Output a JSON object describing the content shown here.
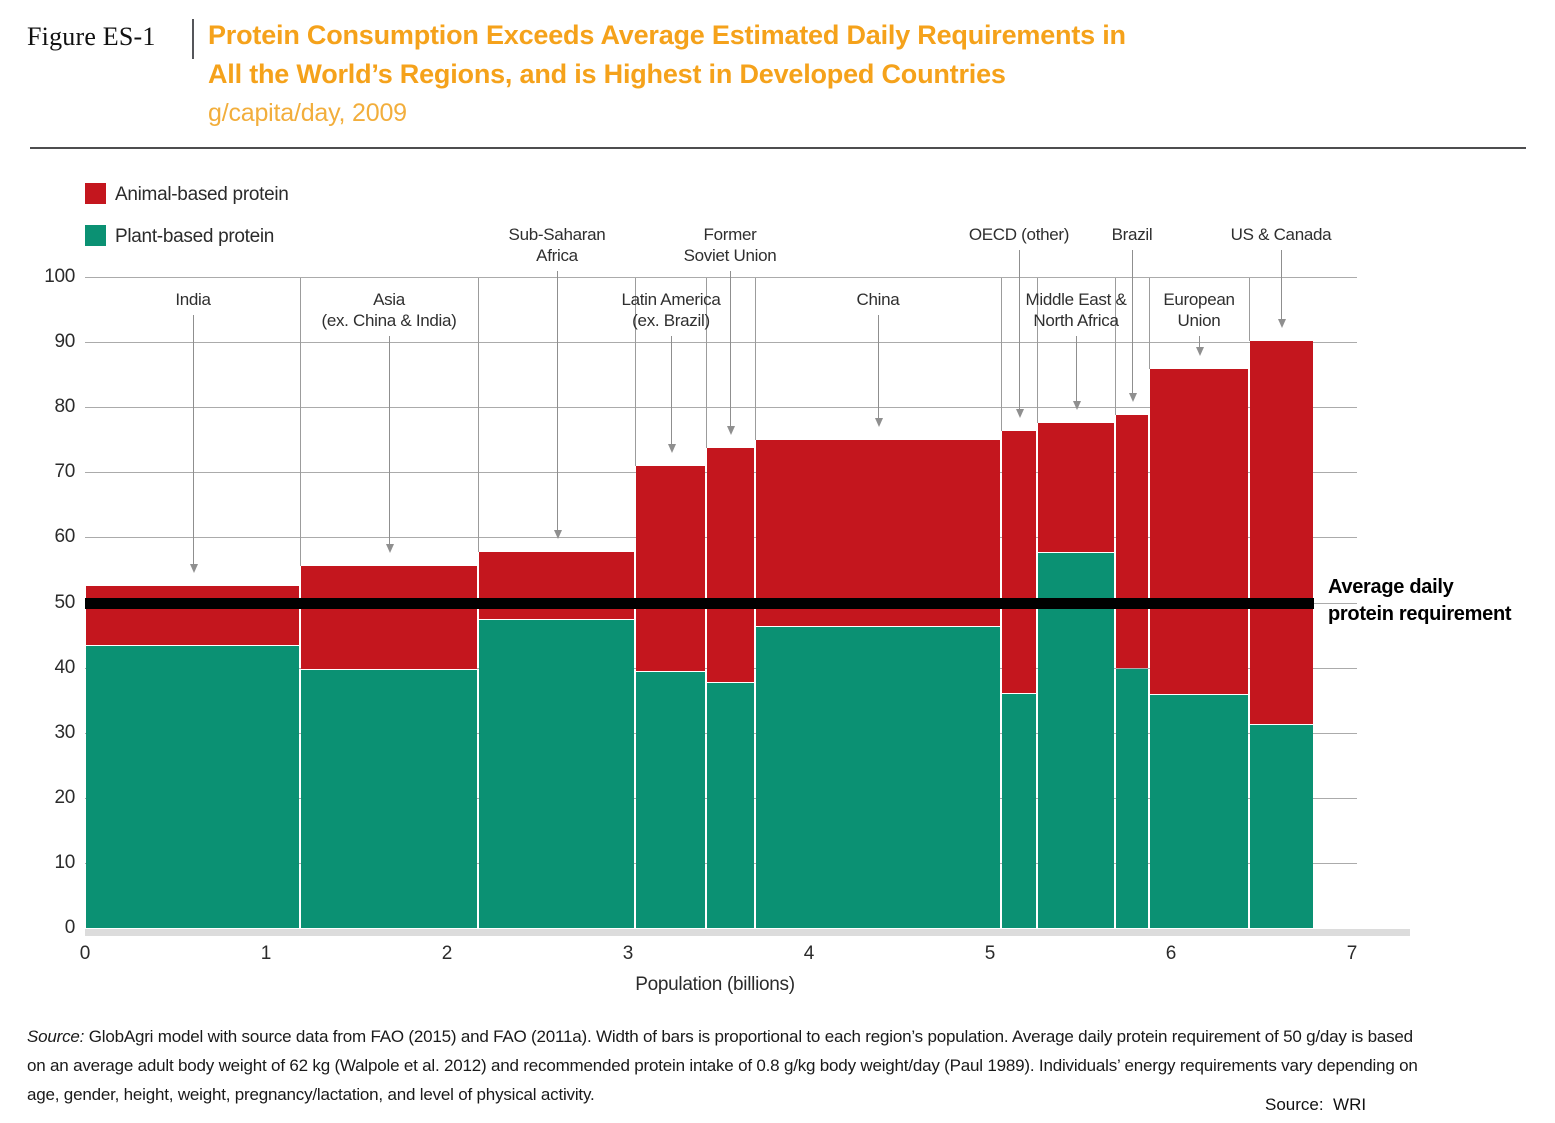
{
  "header": {
    "figure_label": "Figure ES-1",
    "title_line1": "Protein Consumption Exceeds Average Estimated Daily Requirements in",
    "title_line2": "All the World’s Regions, and is Highest in Developed Countries",
    "subtitle": "g/capita/day, 2009",
    "title_color": "#F5A21B"
  },
  "legend": {
    "items": [
      {
        "label": "Animal-based protein",
        "color": "#C4161E"
      },
      {
        "label": "Plant-based protein",
        "color": "#0B9173"
      }
    ]
  },
  "annotation": {
    "line1": "Average daily",
    "line2": "protein requirement"
  },
  "footer": {
    "source_label": "Source:",
    "line1": "GlobAgri model with source data from FAO (2015) and FAO (2011a). Width of bars is proportional to each region’s population. Average daily protein requirement of 50 g/day is based",
    "line2": "on an average adult body weight of 62 kg (Walpole et al. 2012) and recommended protein intake of 0.8 g/kg body weight/day (Paul 1989). Individuals’ energy requirements vary depending on",
    "line3": "age, gender, height, weight, pregnancy/lactation, and level of physical activity.",
    "credit": "Source:  WRI"
  },
  "chart_data": {
    "type": "bar",
    "subtype": "variable-width stacked bars (marimekko); bar width proportional to population",
    "title": "Protein Consumption Exceeds Average Estimated Daily Requirements in All the World’s Regions, and is Highest in Developed Countries",
    "unit": "g/capita/day",
    "year": "2009",
    "xlabel": "Population (billions)",
    "ylabel": "",
    "x_ticks": [
      0,
      1,
      2,
      3,
      4,
      5,
      6,
      7
    ],
    "xlim": [
      0,
      7
    ],
    "ylim": [
      0,
      100
    ],
    "y_tick_step": 10,
    "grid": true,
    "legend_position": "top-left",
    "reference_line": {
      "value": 50,
      "label": "Average daily protein requirement"
    },
    "series": [
      {
        "name": "Animal-based protein",
        "color": "#C4161E"
      },
      {
        "name": "Plant-based protein",
        "color": "#0B9173"
      }
    ],
    "regions": [
      {
        "name": "India",
        "label_lines": [
          "India"
        ],
        "label_row": "lower",
        "pop_start": 0,
        "pop_end": 1.19,
        "plant": 43.3,
        "animal": 9.2,
        "total": 52.5
      },
      {
        "name": "Asia (ex. China & India)",
        "label_lines": [
          "Asia",
          "(ex. China & India)"
        ],
        "label_row": "lower",
        "pop_start": 1.19,
        "pop_end": 2.17,
        "plant": 39.6,
        "animal": 16.0,
        "total": 55.6
      },
      {
        "name": "Sub-Saharan Africa",
        "label_lines": [
          "Sub-Saharan",
          "Africa"
        ],
        "label_row": "upper",
        "pop_start": 2.17,
        "pop_end": 3.04,
        "plant": 47.3,
        "animal": 10.4,
        "total": 57.7
      },
      {
        "name": "Latin America (ex. Brazil)",
        "label_lines": [
          "Latin America",
          "(ex. Brazil)"
        ],
        "label_row": "lower",
        "pop_start": 3.04,
        "pop_end": 3.43,
        "plant": 39.4,
        "animal": 31.5,
        "total": 70.9
      },
      {
        "name": "Former Soviet Union",
        "label_lines": [
          "Former",
          "Soviet Union"
        ],
        "label_row": "upper",
        "pop_start": 3.43,
        "pop_end": 3.7,
        "plant": 37.6,
        "animal": 36.2,
        "total": 73.8
      },
      {
        "name": "China",
        "label_lines": [
          "China"
        ],
        "label_row": "lower",
        "pop_start": 3.7,
        "pop_end": 5.06,
        "plant": 46.3,
        "animal": 28.7,
        "total": 75.0
      },
      {
        "name": "OECD (other)",
        "label_lines": [
          "OECD (other)"
        ],
        "label_row": "upper",
        "pop_start": 5.06,
        "pop_end": 5.26,
        "plant": 35.9,
        "animal": 40.4,
        "total": 76.3
      },
      {
        "name": "Middle East & North Africa",
        "label_lines": [
          "Middle East &",
          "North Africa"
        ],
        "label_row": "lower",
        "pop_start": 5.26,
        "pop_end": 5.69,
        "plant": 57.6,
        "animal": 20.0,
        "total": 77.6
      },
      {
        "name": "Brazil",
        "label_lines": [
          "Brazil"
        ],
        "label_row": "upper",
        "pop_start": 5.69,
        "pop_end": 5.88,
        "plant": 39.8,
        "animal": 39.0,
        "total": 78.8
      },
      {
        "name": "European Union",
        "label_lines": [
          "European",
          "Union"
        ],
        "label_row": "lower",
        "pop_start": 5.88,
        "pop_end": 6.43,
        "plant": 35.8,
        "animal": 50.1,
        "total": 85.9
      },
      {
        "name": "US & Canada",
        "label_lines": [
          "US & Canada"
        ],
        "label_row": "upper",
        "pop_start": 6.43,
        "pop_end": 6.79,
        "plant": 31.2,
        "animal": 59.0,
        "total": 90.2
      }
    ]
  }
}
